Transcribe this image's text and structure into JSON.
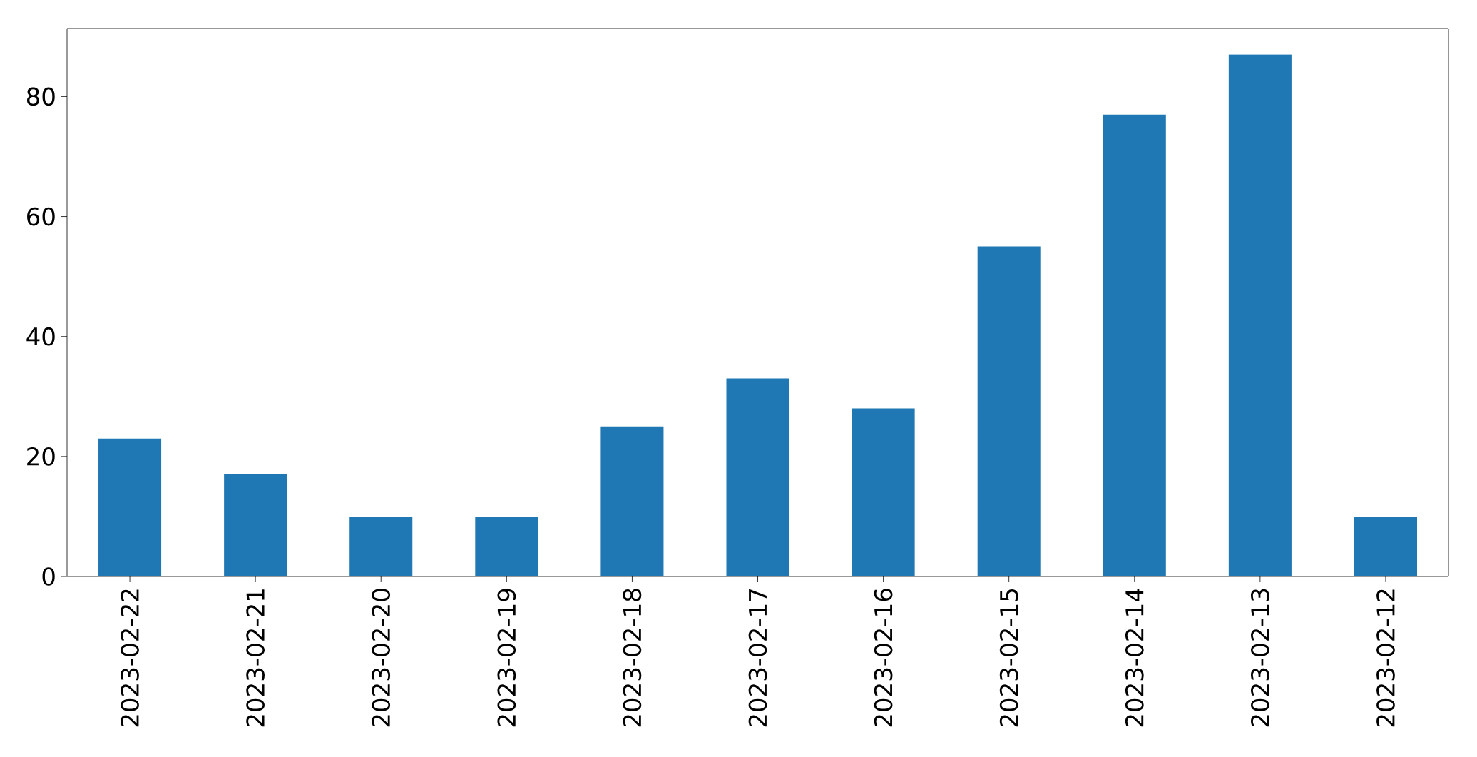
{
  "chart_data": {
    "type": "bar",
    "categories": [
      "2023-02-22",
      "2023-02-21",
      "2023-02-20",
      "2023-02-19",
      "2023-02-18",
      "2023-02-17",
      "2023-02-16",
      "2023-02-15",
      "2023-02-14",
      "2023-02-13",
      "2023-02-12"
    ],
    "values": [
      23,
      17,
      10,
      10,
      25,
      33,
      28,
      55,
      77,
      87,
      10
    ],
    "color": "#1f77b4",
    "ylim": [
      0,
      91.35
    ],
    "yticks": [
      0,
      20,
      40,
      60,
      80
    ]
  }
}
